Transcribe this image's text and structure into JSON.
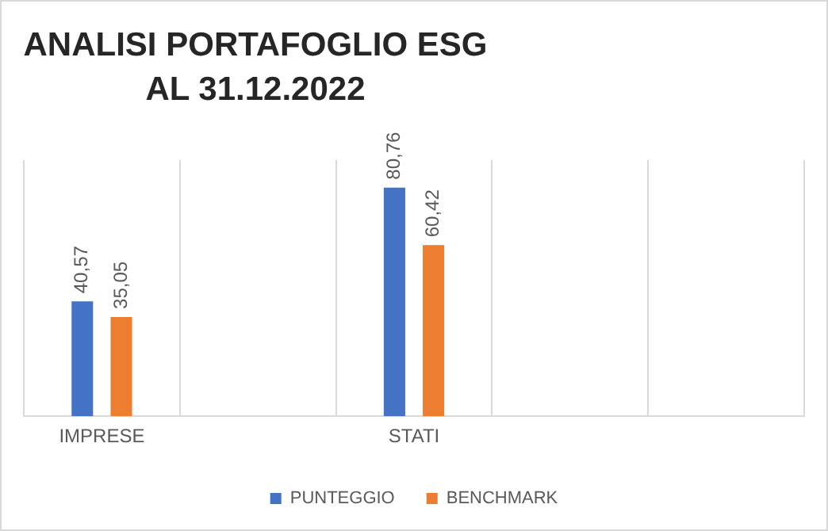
{
  "chart_data": {
    "type": "bar",
    "title": "ANALISI PORTAFOGLIO ESG\nAL 31.12.2022",
    "categories": [
      "IMPRESE",
      null,
      "STATI",
      null,
      null
    ],
    "series": [
      {
        "name": "PUNTEGGIO",
        "color": "#4472c4",
        "values": [
          40.57,
          null,
          80.76,
          null,
          null
        ],
        "value_labels": [
          "40,57",
          null,
          "80,76",
          null,
          null
        ]
      },
      {
        "name": "BENCHMARK",
        "color": "#ed7d31",
        "values": [
          35.05,
          null,
          60.42,
          null,
          null
        ],
        "value_labels": [
          "35,05",
          null,
          "60,42",
          null,
          null
        ]
      }
    ],
    "grid": "x",
    "legend": "bottom"
  }
}
